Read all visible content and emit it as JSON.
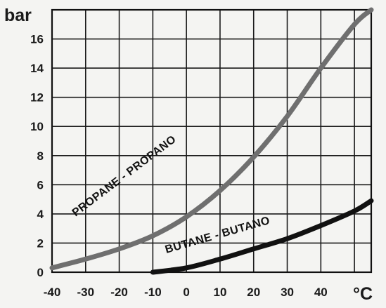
{
  "chart_data": {
    "type": "line",
    "title": "",
    "ylabel": "bar",
    "xlabel": "°C",
    "xlim": [
      -40,
      55
    ],
    "ylim": [
      0,
      18
    ],
    "x_ticks": [
      -40,
      -30,
      -20,
      -10,
      0,
      10,
      20,
      30,
      40
    ],
    "y_ticks": [
      0,
      2,
      4,
      6,
      8,
      10,
      12,
      14,
      16
    ],
    "grid": true,
    "series": [
      {
        "name": "PROPANE - PROPANO",
        "color": "#6f6f6f",
        "x": [
          -40,
          -30,
          -20,
          -10,
          0,
          10,
          20,
          30,
          40,
          50,
          55
        ],
        "y": [
          0.3,
          0.9,
          1.6,
          2.5,
          3.8,
          5.6,
          7.9,
          10.7,
          14.0,
          17.0,
          18.0
        ]
      },
      {
        "name": "BUTANE - BUTANO",
        "color": "#111111",
        "x": [
          -10,
          0,
          10,
          20,
          30,
          40,
          50,
          55
        ],
        "y": [
          0.0,
          0.3,
          0.9,
          1.6,
          2.3,
          3.2,
          4.2,
          4.9
        ]
      }
    ]
  }
}
